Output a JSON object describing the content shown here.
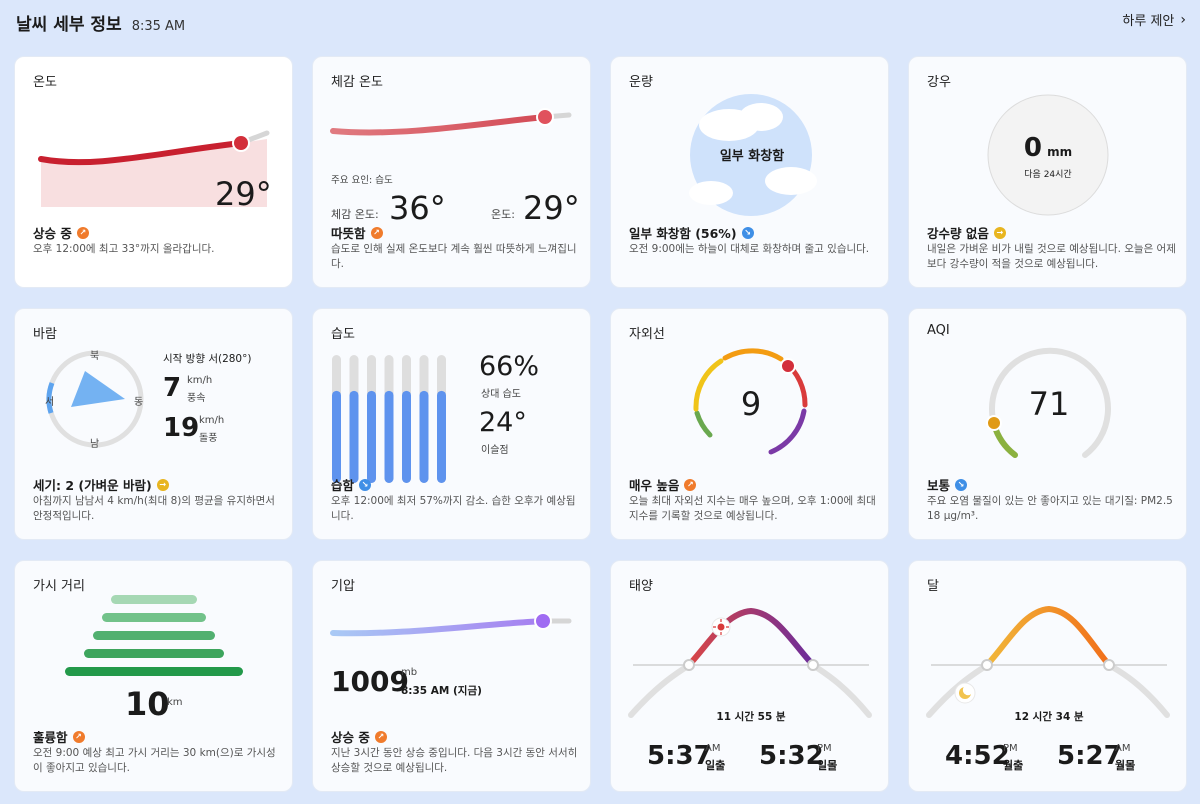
{
  "header": {
    "title": "날씨 세부 정보",
    "time": "8:35 AM",
    "suggest_label": "하루 제안",
    "suggest_icon": "chevron-right-icon"
  },
  "temperature": {
    "title": "온도",
    "value": "29°",
    "status": "상승 중",
    "desc": "오후 12:00에 최고 33°까지 올라갑니다."
  },
  "feels": {
    "title": "체감 온도",
    "factor": "주요 요인: 습도",
    "feels_label": "체감 온도:",
    "feels_value": "36°",
    "temp_label": "온도:",
    "temp_value": "29°",
    "status": "따뜻함",
    "desc": "습도로 인해 실제 온도보다 계속 훨씬 따뜻하게 느껴집니다."
  },
  "cloud": {
    "title": "운량",
    "circle_label": "일부 화창함",
    "status": "일부 화창함 (56%)",
    "desc": "오전 9:00에는 하늘이 대체로 화창하며 줄고 있습니다."
  },
  "rain": {
    "title": "강우",
    "value": "0",
    "unit": "mm",
    "sub": "다음 24시간",
    "status": "강수량 없음",
    "desc": "내일은 가벼운 비가 내릴 것으로 예상됩니다. 오늘은 어제보다 강수량이 적을 것으로 예상됩니다."
  },
  "wind": {
    "title": "바람",
    "north": "북",
    "east": "동",
    "south": "남",
    "west": "서",
    "direction": "시작 방향 서(280°)",
    "speed": "7",
    "speed_unit": "km/h",
    "speed_label": "풍속",
    "gust": "19",
    "gust_unit": "km/h",
    "gust_label": "돌풍",
    "status": "세기: 2 (가벼운 바람)",
    "desc": "아침까지 남남서 4 km/h(최대 8)의 평균을 유지하면서 안정적입니다."
  },
  "humidity": {
    "title": "습도",
    "value": "66%",
    "value_label": "상대 습도",
    "dew": "24°",
    "dew_label": "이슬점",
    "status": "습함",
    "desc": "오후 12:00에 최저 57%까지 감소. 습한 오후가 예상됩니다.",
    "bar_levels": [
      0.72,
      0.72,
      0.72,
      0.72,
      0.72,
      0.72,
      0.72
    ]
  },
  "uv": {
    "title": "자외선",
    "value": "9",
    "status": "매우 높음",
    "desc": "오늘 최대 자외선 지수는 매우 높으며, 오후 1:00에 최대 지수를 기록할 것으로 예상됩니다."
  },
  "aqi": {
    "title": "AQI",
    "value": "71",
    "status": "보통",
    "desc": "주요 오염 물질이 있는 안 좋아지고 있는 대기질: PM2.5 18 μg/m³."
  },
  "visibility": {
    "title": "가시 거리",
    "value": "10",
    "unit": "km",
    "status": "훌륭함",
    "desc": "오전 9:00 예상 최고 가시 거리는 30 km(으)로 가시성이 좋아지고 있습니다."
  },
  "pressure": {
    "title": "기압",
    "value": "1009",
    "unit": "mb",
    "time": "8:35 AM (지금)",
    "status": "상승 중",
    "desc": "지난 3시간 동안 상승 중입니다. 다음 3시간 동안 서서히 상승할 것으로 예상됩니다."
  },
  "sun": {
    "title": "태양",
    "duration": "11 시간 55 분",
    "rise_time": "5:37",
    "rise_ampm": "AM",
    "rise_label": "일출",
    "set_time": "5:32",
    "set_ampm": "PM",
    "set_label": "일몰"
  },
  "moon": {
    "title": "달",
    "duration": "12 시간 34 분",
    "rise_time": "4:52",
    "rise_ampm": "PM",
    "rise_label": "월출",
    "set_time": "5:27",
    "set_ampm": "AM",
    "set_label": "월몰"
  }
}
